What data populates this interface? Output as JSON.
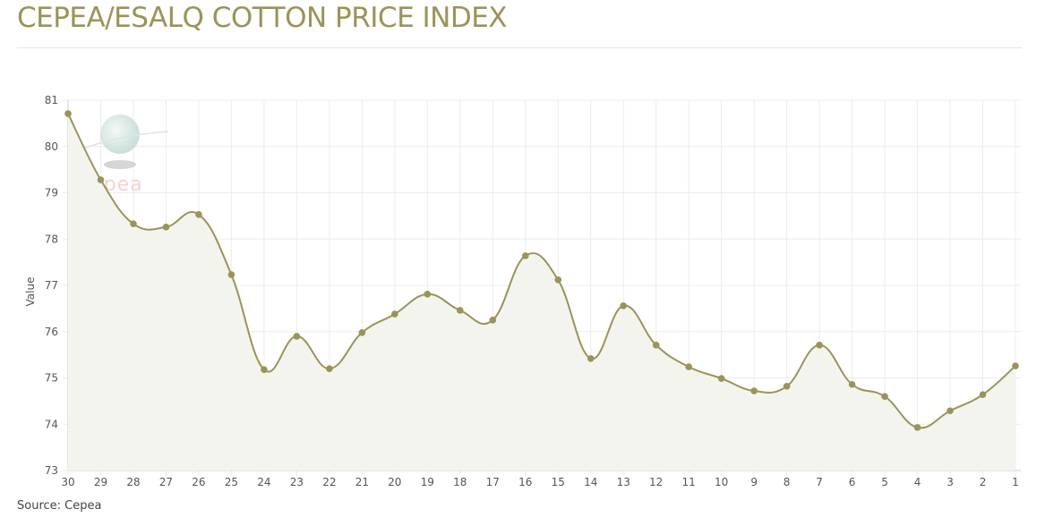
{
  "title": "CEPEA/ESALQ COTTON PRICE INDEX",
  "source": "Source: Cepea",
  "watermark": "cepea",
  "colors": {
    "line": "#9a9458",
    "fill": "#f4f4ef",
    "grid": "#ececec",
    "title": "#9a9458"
  },
  "chart_data": {
    "type": "area",
    "title": "CEPEA/ESALQ COTTON PRICE INDEX",
    "xlabel": "",
    "ylabel": "Value",
    "ylim": [
      73,
      81
    ],
    "yticks": [
      "73",
      "74",
      "75",
      "76",
      "77",
      "78",
      "79",
      "80",
      "81"
    ],
    "grid": true,
    "categories": [
      "30",
      "29",
      "28",
      "27",
      "26",
      "25",
      "24",
      "23",
      "22",
      "21",
      "20",
      "19",
      "18",
      "17",
      "16",
      "15",
      "14",
      "13",
      "12",
      "11",
      "10",
      "9",
      "8",
      "7",
      "6",
      "5",
      "4",
      "3",
      "2",
      "1"
    ],
    "values": [
      80.71,
      79.28,
      78.33,
      78.26,
      78.53,
      77.23,
      75.18,
      75.9,
      75.2,
      75.98,
      76.38,
      76.81,
      76.46,
      76.25,
      77.64,
      77.12,
      75.42,
      76.56,
      75.71,
      75.24,
      74.99,
      74.72,
      74.82,
      75.71,
      74.86,
      74.6,
      73.93,
      74.29,
      74.64,
      75.26
    ]
  }
}
